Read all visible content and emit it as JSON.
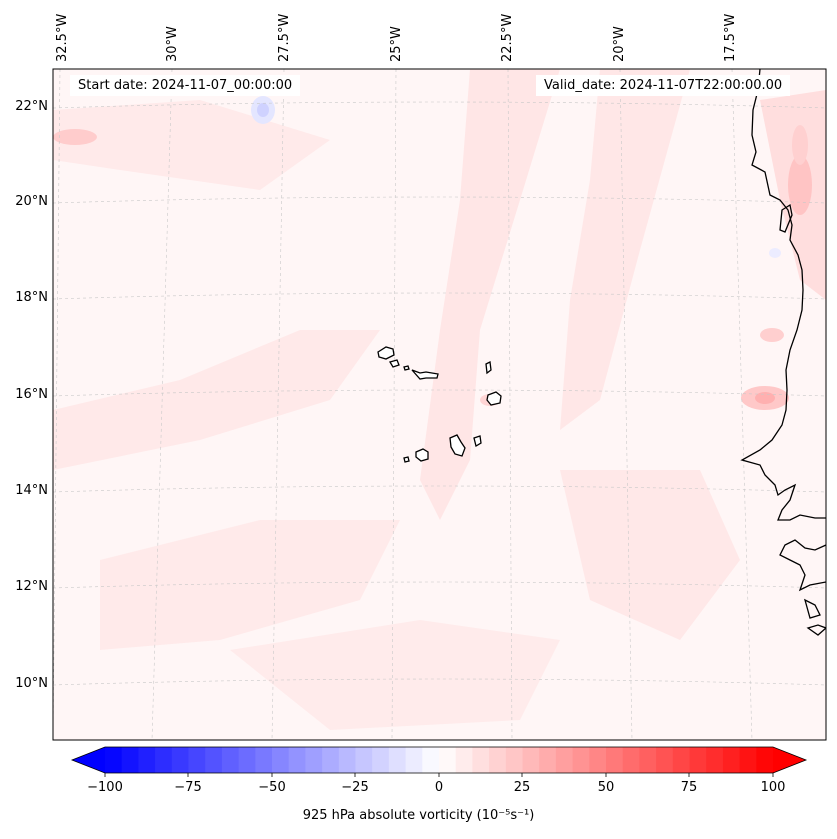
{
  "map": {
    "start_date_text": "Start date: 2024-11-07_00:00:00",
    "valid_date_text": "Valid_date: 2024-11-07T22:00:00.00",
    "lon_labels": [
      "32.5°W",
      "30°W",
      "27.5°W",
      "25°W",
      "22.5°W",
      "20°W",
      "17.5°W"
    ],
    "lat_labels": [
      "22°N",
      "20°N",
      "18°N",
      "16°N",
      "14°N",
      "12°N",
      "10°N"
    ],
    "field": "925 hPa absolute vorticity",
    "feature_icons": [
      "coastline-icon",
      "island-icon",
      "gridline-icon",
      "vorticity-contour-icon"
    ]
  },
  "colorbar": {
    "label": "925 hPa absolute vorticity (10⁻⁵s⁻¹)",
    "ticks": [
      "−100",
      "−75",
      "−50",
      "−25",
      "0",
      "25",
      "50",
      "75",
      "100"
    ],
    "min": -100,
    "max": 100,
    "levels": 40,
    "color_negative": "#0000ff",
    "color_zero": "#ffffff",
    "color_positive": "#ff0000"
  }
}
